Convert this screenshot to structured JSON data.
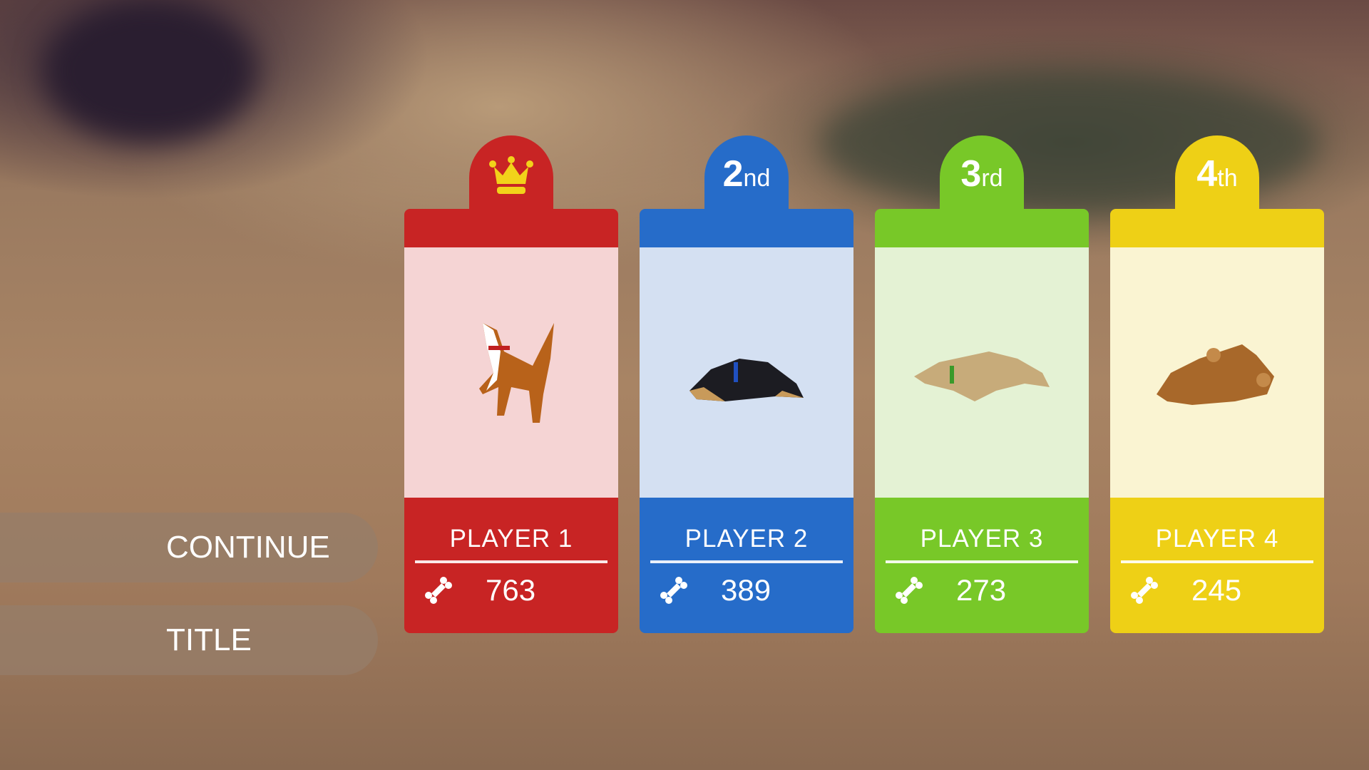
{
  "menu": {
    "continue_label": "CONTINUE",
    "title_label": "TITLE"
  },
  "players": [
    {
      "rank_icon": "crown-icon",
      "rank_num": "",
      "rank_suffix": "",
      "name": "PLAYER 1",
      "score": "763",
      "color": "#c82424",
      "light": "#f5d4d4",
      "dog": "husky-standing"
    },
    {
      "rank_num": "2",
      "rank_suffix": "nd",
      "name": "PLAYER 2",
      "score": "389",
      "color": "#266cc9",
      "light": "#d4e0f2",
      "dog": "black-dog-lying"
    },
    {
      "rank_num": "3",
      "rank_suffix": "rd",
      "name": "PLAYER 3",
      "score": "273",
      "color": "#78c828",
      "light": "#e4f2d4",
      "dog": "tan-dog-lying"
    },
    {
      "rank_num": "4",
      "rank_suffix": "th",
      "name": "PLAYER 4",
      "score": "245",
      "color": "#eed016",
      "light": "#faf4d2",
      "dog": "brown-dog-rolling"
    }
  ],
  "score_icon": "bone-icon"
}
